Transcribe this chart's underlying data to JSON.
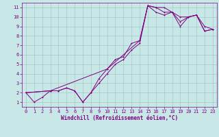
{
  "background_color": "#c8e8e8",
  "grid_color": "#a8c8c8",
  "line_color": "#800080",
  "marker_color": "#800080",
  "xlabel": "Windchill (Refroidissement éolien,°C)",
  "xlabel_color": "#800080",
  "tick_color": "#800080",
  "spine_color": "#800080",
  "xlim": [
    -0.5,
    23.5
  ],
  "ylim": [
    0.5,
    11.5
  ],
  "xticks": [
    0,
    1,
    2,
    3,
    4,
    5,
    6,
    7,
    8,
    9,
    10,
    11,
    12,
    13,
    14,
    15,
    16,
    17,
    18,
    19,
    20,
    21,
    22,
    23
  ],
  "yticks": [
    1,
    2,
    3,
    4,
    5,
    6,
    7,
    8,
    9,
    10,
    11
  ],
  "line1_x": [
    0,
    1,
    2,
    3,
    4,
    5,
    6,
    7,
    8,
    9,
    10,
    11,
    12,
    13,
    14,
    15,
    16,
    17,
    18,
    19,
    20,
    21,
    22,
    23
  ],
  "line1_y": [
    2,
    1,
    1.5,
    2.2,
    2.2,
    2.5,
    2.2,
    1.0,
    2.0,
    3.5,
    4.5,
    5.5,
    5.8,
    7.2,
    7.5,
    11.2,
    11.0,
    11.0,
    10.5,
    10.0,
    10.0,
    10.2,
    9.0,
    8.7
  ],
  "line2_x": [
    0,
    3,
    4,
    5,
    6,
    7,
    8,
    9,
    10,
    11,
    12,
    13,
    14,
    15,
    16,
    17,
    18,
    19,
    20,
    21,
    22,
    23
  ],
  "line2_y": [
    2,
    2.2,
    2.2,
    2.5,
    2.2,
    1.0,
    2.0,
    3.0,
    4.0,
    5.0,
    5.5,
    6.5,
    7.2,
    11.2,
    10.5,
    10.2,
    10.5,
    9.5,
    10.0,
    10.2,
    8.5,
    8.7
  ],
  "line3_x": [
    0,
    3,
    10,
    14,
    15,
    16,
    17,
    18,
    19,
    20,
    21,
    22,
    23
  ],
  "line3_y": [
    2,
    2.2,
    4.5,
    7.5,
    11.2,
    11.0,
    10.5,
    10.5,
    9.0,
    10.0,
    10.2,
    8.5,
    8.7
  ],
  "tick_fontsize": 5.0,
  "xlabel_fontsize": 5.5,
  "marker_size": 2.0,
  "line_width": 0.7
}
